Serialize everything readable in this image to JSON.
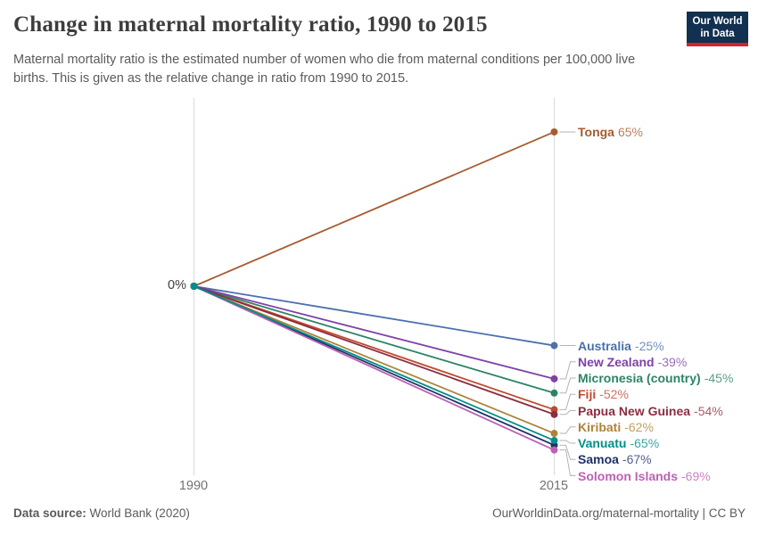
{
  "header": {
    "title": "Change in maternal mortality ratio, 1990 to 2015",
    "subtitle": "Maternal mortality ratio is the estimated number of women who die from maternal conditions per 100,000 live births. This is given as the relative change in ratio from 1990 to 2015."
  },
  "logo": {
    "line1": "Our World",
    "line2": "in Data",
    "bg_color": "#12304f",
    "stripe_color": "#d0232e"
  },
  "chart_data": {
    "type": "line",
    "subtype": "slope-chart",
    "x": [
      "1990",
      "2015"
    ],
    "start_label": "0%",
    "ylim": [
      -69,
      65
    ],
    "grid": false,
    "legend_position": "right-labels",
    "series": [
      {
        "name": "Australia",
        "values": [
          0,
          -25
        ],
        "change": "-25%",
        "color": "#4a70ad"
      },
      {
        "name": "Fiji",
        "values": [
          0,
          -52
        ],
        "change": "-52%",
        "color": "#c2492e"
      },
      {
        "name": "Kiribati",
        "values": [
          0,
          -62
        ],
        "change": "-62%",
        "color": "#ad8339"
      },
      {
        "name": "Micronesia (country)",
        "values": [
          0,
          -45
        ],
        "change": "-45%",
        "color": "#2c8465"
      },
      {
        "name": "New Zealand",
        "values": [
          0,
          -39
        ],
        "change": "-39%",
        "color": "#7d42a9"
      },
      {
        "name": "Papua New Guinea",
        "values": [
          0,
          -54
        ],
        "change": "-54%",
        "color": "#8b2e3f"
      },
      {
        "name": "Samoa",
        "values": [
          0,
          -67
        ],
        "change": "-67%",
        "color": "#1d3264"
      },
      {
        "name": "Solomon Islands",
        "values": [
          0,
          -69
        ],
        "change": "-69%",
        "color": "#bd60b4"
      },
      {
        "name": "Tonga",
        "values": [
          0,
          65
        ],
        "change": "65%",
        "color": "#a75b2f"
      },
      {
        "name": "Vanuatu",
        "values": [
          0,
          -65
        ],
        "change": "-65%",
        "color": "#018e89"
      }
    ],
    "axis_color": "#d9d9d9",
    "connector_color": "#b3b3b3"
  },
  "footer": {
    "source_label": "Data source:",
    "source_value": " World Bank (2020)",
    "credit": "OurWorldinData.org/maternal-mortality | CC BY"
  }
}
